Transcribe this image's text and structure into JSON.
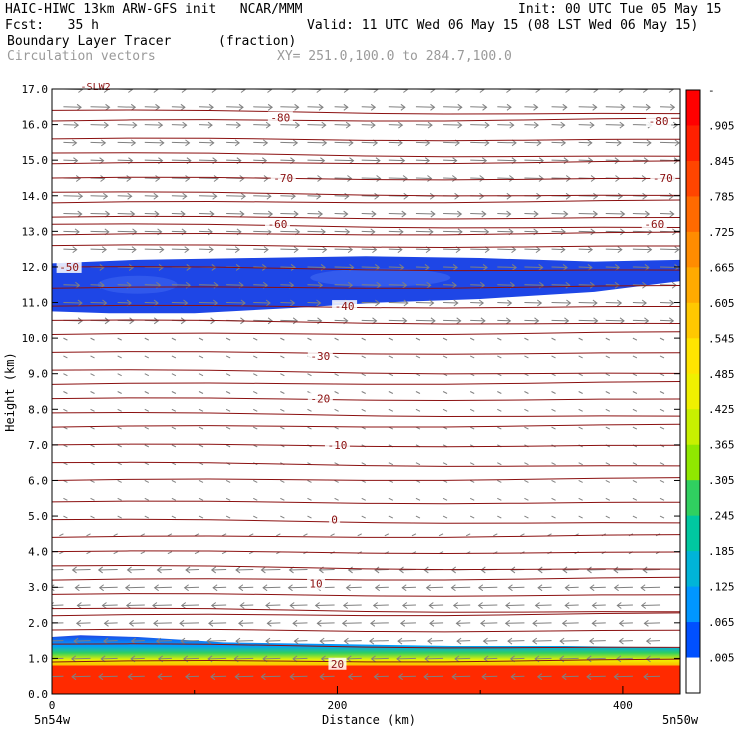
{
  "header": {
    "line1_left": "HAIC-HIWC 13km ARW-GFS init   NCAR/MMM",
    "line1_right": "Init: 00 UTC Tue 05 May 15",
    "fcst": "Fcst:   35 h",
    "valid": "Valid: 11 UTC Wed 06 May 15 (08 LST Wed 06 May 15)",
    "field_name": "Boundary Layer Tracer",
    "field_units": "(fraction)",
    "vector_label": "Circulation vectors",
    "xy_label": "XY= 251.0,100.0 to 284.7,100.0"
  },
  "chart_data": {
    "type": "cross-section",
    "ylabel": "Height (km)",
    "xlabel": "Distance (km)",
    "xlim": [
      0,
      440
    ],
    "ylim": [
      0.0,
      17.0
    ],
    "y_ticks": [
      "0.0",
      "1.0",
      "2.0",
      "3.0",
      "4.0",
      "5.0",
      "6.0",
      "7.0",
      "8.0",
      "9.0",
      "10.0",
      "11.0",
      "12.0",
      "13.0",
      "14.0",
      "15.0",
      "16.0",
      "17.0"
    ],
    "x_ticks": [
      "0",
      "200",
      "400"
    ],
    "x_end_labels": {
      "left": "5n54w",
      "right": "5n50w"
    },
    "temperature_labels": [
      {
        "text": "-80",
        "x": [
          160,
          425
        ],
        "y": [
          16.2,
          16.1
        ]
      },
      {
        "text": "-70",
        "x": [
          162,
          428
        ],
        "y": [
          14.5,
          14.5
        ]
      },
      {
        "text": "-60",
        "x": [
          158,
          422
        ],
        "y": [
          13.2,
          13.2
        ]
      },
      {
        "text": "-50",
        "x": [
          12
        ],
        "y": [
          12.0
        ]
      },
      {
        "text": "-40",
        "x": [
          205
        ],
        "y": [
          10.9
        ]
      },
      {
        "text": "-30",
        "x": [
          188
        ],
        "y": [
          9.5
        ]
      },
      {
        "text": "-20",
        "x": [
          188
        ],
        "y": [
          8.3
        ]
      },
      {
        "text": "-10",
        "x": [
          200
        ],
        "y": [
          7.0
        ]
      },
      {
        "text": "0",
        "x": [
          198
        ],
        "y": [
          4.9
        ]
      },
      {
        "text": "10",
        "x": [
          185
        ],
        "y": [
          3.1
        ]
      },
      {
        "text": "20",
        "x": [
          200
        ],
        "y": [
          0.85
        ]
      }
    ],
    "top_partial_label": "-SLW2",
    "colorbar_labels": [
      "-",
      ".905",
      ".845",
      ".785",
      ".725",
      ".665",
      ".605",
      ".545",
      ".485",
      ".425",
      ".365",
      ".305",
      ".245",
      ".185",
      ".125",
      ".065",
      ".005"
    ],
    "colorbar_colors": [
      "#ff0000",
      "#ff2000",
      "#ff4500",
      "#ff6a00",
      "#ff8c00",
      "#ffaa00",
      "#ffc800",
      "#ffe400",
      "#f0f000",
      "#c8f000",
      "#90e800",
      "#30d060",
      "#00c8a0",
      "#00b4d8",
      "#0096ff",
      "#0050ff",
      "#ffffff"
    ],
    "upper_plume": {
      "bottom_km": 10.7,
      "top_km": 12.3,
      "color": "#1e46e6"
    },
    "boundary_layer": {
      "top_km_left": 1.6,
      "top_km_right": 1.3,
      "color": "#ff2a00"
    }
  }
}
